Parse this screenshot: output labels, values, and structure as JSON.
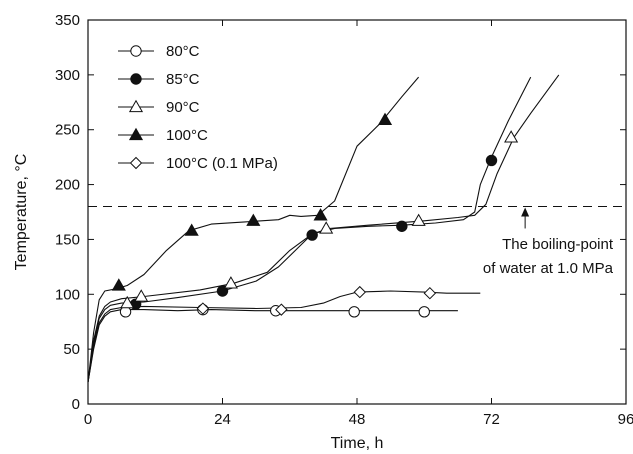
{
  "chart_data": {
    "type": "line",
    "title": "",
    "xlabel": "Time, h",
    "ylabel": "Temperature, °C",
    "xlim": [
      0,
      96
    ],
    "ylim": [
      0,
      350
    ],
    "x_ticks": [
      0,
      24,
      48,
      72,
      96
    ],
    "y_ticks": [
      0,
      50,
      100,
      150,
      200,
      250,
      300,
      350
    ],
    "grid": false,
    "legend_position": "top-left",
    "series": [
      {
        "name": "80°C",
        "marker": "circle-open",
        "line": [
          [
            0,
            20
          ],
          [
            1,
            50
          ],
          [
            2,
            72
          ],
          [
            3,
            80
          ],
          [
            4,
            84
          ],
          [
            6,
            86
          ],
          [
            10,
            86
          ],
          [
            16,
            85
          ],
          [
            22,
            86
          ],
          [
            30,
            85
          ],
          [
            40,
            85
          ],
          [
            50,
            85
          ],
          [
            62,
            85
          ],
          [
            66,
            85
          ]
        ],
        "markers": [
          [
            6.7,
            84
          ],
          [
            20.5,
            86
          ],
          [
            33.5,
            85
          ],
          [
            47.5,
            84
          ],
          [
            60,
            84
          ]
        ]
      },
      {
        "name": "85°C",
        "marker": "circle-filled",
        "line": [
          [
            0,
            20
          ],
          [
            1,
            55
          ],
          [
            2,
            78
          ],
          [
            3,
            86
          ],
          [
            4,
            90
          ],
          [
            6,
            92
          ],
          [
            10,
            93
          ],
          [
            16,
            97
          ],
          [
            24,
            103
          ],
          [
            30,
            112
          ],
          [
            34,
            125
          ],
          [
            37,
            140
          ],
          [
            40,
            155
          ],
          [
            44,
            160
          ],
          [
            50,
            162
          ],
          [
            56,
            163
          ],
          [
            62,
            165
          ],
          [
            67,
            168
          ],
          [
            69,
            175
          ],
          [
            70,
            200
          ],
          [
            72,
            225
          ],
          [
            75,
            258
          ],
          [
            79,
            298
          ]
        ],
        "markers": [
          [
            8.5,
            91
          ],
          [
            24,
            103
          ],
          [
            40,
            154
          ],
          [
            56,
            162
          ],
          [
            72,
            222
          ]
        ]
      },
      {
        "name": "90°C",
        "marker": "triangle-open",
        "line": [
          [
            0,
            20
          ],
          [
            1,
            58
          ],
          [
            2,
            80
          ],
          [
            3,
            89
          ],
          [
            4,
            93
          ],
          [
            6,
            96
          ],
          [
            10,
            98
          ],
          [
            20,
            104
          ],
          [
            26,
            110
          ],
          [
            32,
            120
          ],
          [
            36,
            140
          ],
          [
            40,
            155
          ],
          [
            43,
            160
          ],
          [
            50,
            163
          ],
          [
            60,
            167
          ],
          [
            66,
            170
          ],
          [
            69,
            172
          ],
          [
            71,
            182
          ],
          [
            73,
            210
          ],
          [
            76,
            243
          ],
          [
            79,
            265
          ],
          [
            84,
            300
          ]
        ],
        "markers": [
          [
            7,
            92
          ],
          [
            9.5,
            98
          ],
          [
            25.5,
            110
          ],
          [
            42.5,
            160
          ],
          [
            59,
            167
          ],
          [
            75.5,
            243
          ]
        ]
      },
      {
        "name": "100°C",
        "marker": "triangle-filled",
        "line": [
          [
            0,
            20
          ],
          [
            1,
            65
          ],
          [
            2,
            95
          ],
          [
            3,
            103
          ],
          [
            5,
            105
          ],
          [
            7,
            108
          ],
          [
            10,
            118
          ],
          [
            14,
            140
          ],
          [
            18,
            158
          ],
          [
            22,
            164
          ],
          [
            28,
            166
          ],
          [
            34,
            168
          ],
          [
            36,
            172
          ],
          [
            38,
            171
          ],
          [
            41,
            172
          ],
          [
            44,
            185
          ],
          [
            48,
            235
          ],
          [
            52,
            255
          ],
          [
            56,
            280
          ],
          [
            59,
            298
          ]
        ],
        "markers": [
          [
            5.5,
            108
          ],
          [
            18.5,
            158
          ],
          [
            29.5,
            167
          ],
          [
            41.5,
            172
          ],
          [
            53,
            259
          ]
        ]
      },
      {
        "name": "100°C (0.1 MPa)",
        "marker": "diamond-open",
        "line": [
          [
            0,
            20
          ],
          [
            1,
            52
          ],
          [
            2,
            74
          ],
          [
            3,
            82
          ],
          [
            4,
            86
          ],
          [
            6,
            88
          ],
          [
            10,
            89
          ],
          [
            20,
            88
          ],
          [
            30,
            87
          ],
          [
            38,
            88
          ],
          [
            42,
            92
          ],
          [
            45,
            98
          ],
          [
            48,
            102
          ],
          [
            54,
            103
          ],
          [
            60,
            102
          ],
          [
            64,
            101
          ],
          [
            70,
            101
          ]
        ],
        "markers": [
          [
            20.5,
            87
          ],
          [
            34.5,
            86
          ],
          [
            48.5,
            102
          ],
          [
            61,
            101
          ]
        ]
      }
    ],
    "reference_line": {
      "y": 180,
      "style": "dashed",
      "x_range": [
        0,
        96
      ]
    },
    "annotation": {
      "line1": "The boiling-point",
      "line2": "of water at 1.0 MPa",
      "arrow_to": [
        78,
        180
      ],
      "arrow_from": [
        78,
        160
      ]
    }
  }
}
